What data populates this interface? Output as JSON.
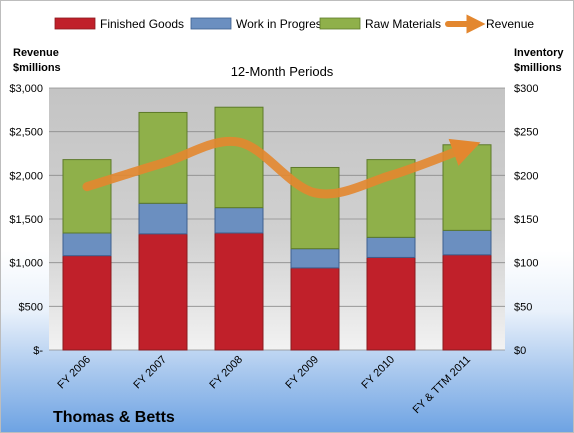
{
  "company": "Thomas & Betts",
  "chart_data": {
    "type": "bar",
    "stacked": true,
    "title": "12-Month Periods",
    "categories": [
      "FY 2006",
      "FY 2007",
      "FY 2008",
      "FY 2009",
      "FY 2010",
      "FY & TTM 2011"
    ],
    "series": [
      {
        "name": "Finished Goods",
        "axis": "right",
        "color": "#c0202a",
        "values": [
          108,
          133,
          134,
          94,
          106,
          109
        ]
      },
      {
        "name": "Work in Progress",
        "axis": "right",
        "color": "#6b8fc0",
        "values": [
          26,
          35,
          29,
          22,
          23,
          28
        ]
      },
      {
        "name": "Raw Materials",
        "axis": "right",
        "color": "#8fb04a",
        "values": [
          84,
          104,
          115,
          93,
          89,
          98
        ]
      },
      {
        "name": "Revenue",
        "axis": "left",
        "type": "line",
        "color": "#e3872f",
        "values": [
          1870,
          2140,
          2380,
          1800,
          2000,
          2320
        ]
      }
    ],
    "left_axis": {
      "title_line1": "Revenue",
      "title_line2": "$millions",
      "min": 0,
      "max": 3000,
      "step": 500,
      "tick_labels": [
        "$-",
        "$500",
        "$1,000",
        "$1,500",
        "$2,000",
        "$2,500",
        "$3,000"
      ]
    },
    "right_axis": {
      "title_line1": "Inventory",
      "title_line2": "$millions",
      "min": 0,
      "max": 300,
      "step": 50,
      "tick_labels": [
        "$0",
        "$50",
        "$100",
        "$150",
        "$200",
        "$250",
        "$300"
      ]
    },
    "grid": true,
    "legend": "top"
  }
}
